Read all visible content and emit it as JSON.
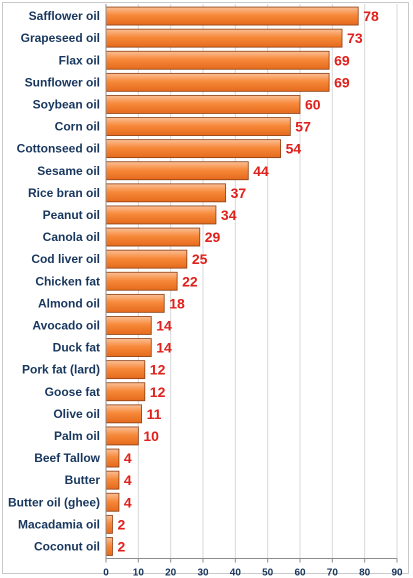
{
  "colors": {
    "bar_fill_light": "#fbbf96",
    "bar_fill": "#f7893a",
    "bar_fill_dark": "#e56a1c",
    "bar_stroke": "#8a3d12",
    "category_label": "#17365d",
    "value_label": "#e0201b",
    "gridline": "#d9d9d9",
    "axis": "#8c8c8c"
  },
  "chart_data": {
    "type": "bar",
    "orientation": "horizontal",
    "categories": [
      "Safflower oil",
      "Grapeseed oil",
      "Flax oil",
      "Sunflower oil",
      "Soybean oil",
      "Corn oil",
      "Cottonseed oil",
      "Sesame oil",
      "Rice bran oil",
      "Peanut oil",
      "Canola oil",
      "Cod liver oil",
      "Chicken fat",
      "Almond oil",
      "Avocado oil",
      "Duck fat",
      "Pork fat (lard)",
      "Goose fat",
      "Olive oil",
      "Palm oil",
      "Beef Tallow",
      "Butter",
      "Butter oil (ghee)",
      "Macadamia oil",
      "Coconut oil"
    ],
    "values": [
      78,
      73,
      69,
      69,
      60,
      57,
      54,
      44,
      37,
      34,
      29,
      25,
      22,
      18,
      14,
      14,
      12,
      12,
      11,
      10,
      4,
      4,
      4,
      2,
      2
    ],
    "data_labels": [
      "78",
      "73",
      "69",
      "69",
      "60",
      "57",
      "54",
      "44",
      "37",
      "34",
      "29",
      "25",
      "22",
      "18",
      "14",
      "14",
      "12",
      "12",
      "11",
      "10",
      "4",
      "4",
      "4",
      "2",
      "2"
    ],
    "xlim": [
      0,
      90
    ],
    "x_ticks": [
      "0",
      "10",
      "20",
      "30",
      "40",
      "50",
      "60",
      "70",
      "80",
      "90"
    ],
    "grid": true,
    "title": "",
    "xlabel": "",
    "ylabel": ""
  }
}
